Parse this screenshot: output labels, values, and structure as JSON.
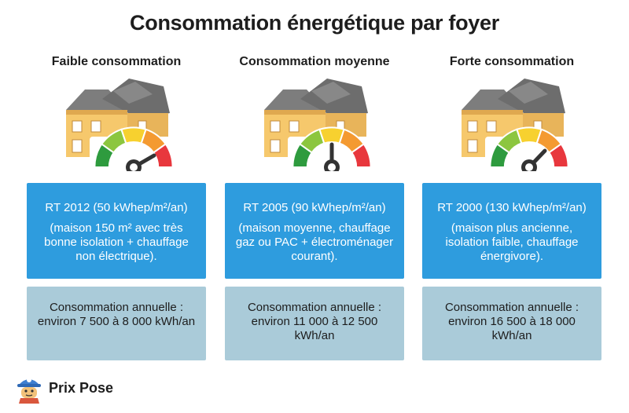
{
  "title": "Consommation énergétique par foyer",
  "categories": [
    {
      "title": "Faible consommation",
      "icon": "house-energy-gauge-icon",
      "gauge_level": "low",
      "rt_standard": "RT 2012 (50 kWhep/m²/an)",
      "description": "(maison 150 m² avec très bonne isolation + chauffage non électrique).",
      "annual_consumption": "Consommation annuelle : environ 7 500 à 8 000 kWh/an"
    },
    {
      "title": "Consommation moyenne",
      "icon": "house-energy-gauge-icon",
      "gauge_level": "medium",
      "rt_standard": "RT 2005 (90 kWhep/m²/an)",
      "description": "(maison moyenne, chauffage gaz ou PAC + électroménager courant).",
      "annual_consumption": "Consommation annuelle : environ 11 000 à 12 500 kWh/an"
    },
    {
      "title": "Forte consommation",
      "icon": "house-energy-gauge-icon",
      "gauge_level": "high",
      "rt_standard": "RT 2000 (130 kWhep/m²/an)",
      "description": "(maison plus ancienne, isolation faible, chauffage énergivore).",
      "annual_consumption": "Consommation annuelle : environ 16 500 à 18 000 kWh/an"
    }
  ],
  "brand": {
    "name": "Prix Pose",
    "icon": "worker-mascot-icon"
  },
  "colors": {
    "blue_box": "#2e9cde",
    "light_box": "#aacbd9",
    "gauge_segments": [
      "#2e9b3e",
      "#8cc63f",
      "#f7d12f",
      "#f49a31",
      "#e8373d"
    ]
  }
}
